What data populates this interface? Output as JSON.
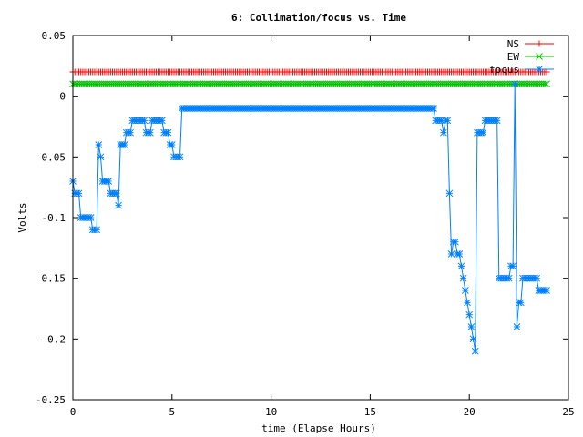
{
  "chart_data": {
    "type": "line",
    "title": "6: Collimation/focus vs. Time",
    "xlabel": "time (Elapse Hours)",
    "ylabel": "Volts",
    "xlim": [
      0,
      25
    ],
    "ylim": [
      -0.25,
      0.05
    ],
    "x_ticks": [
      0,
      5,
      10,
      15,
      20,
      25
    ],
    "y_ticks": [
      0.05,
      0,
      -0.05,
      -0.1,
      -0.15,
      -0.2,
      -0.25
    ],
    "x_tick_labels": [
      "0",
      "5",
      "10",
      "15",
      "20",
      "25"
    ],
    "y_tick_labels": [
      "0.05",
      "0",
      "-0.05",
      "-0.1",
      "-0.15",
      "-0.2",
      "-0.25"
    ],
    "grid": false,
    "legend_position": "top-right",
    "series": [
      {
        "name": "NS",
        "color": "#ff0000",
        "marker": "plus",
        "constant": 0.02,
        "x_range": [
          0,
          23.9
        ],
        "step": 0.1
      },
      {
        "name": "EW",
        "color": "#00c000",
        "marker": "cross",
        "constant": 0.01,
        "x_range": [
          0,
          23.9
        ],
        "step": 0.1
      },
      {
        "name": "focus",
        "color": "#0080ff",
        "marker": "star",
        "points": [
          [
            0.0,
            -0.07
          ],
          [
            0.1,
            -0.08
          ],
          [
            0.2,
            -0.08
          ],
          [
            0.3,
            -0.08
          ],
          [
            0.4,
            -0.1
          ],
          [
            0.5,
            -0.1
          ],
          [
            0.6,
            -0.1
          ],
          [
            0.7,
            -0.1
          ],
          [
            0.8,
            -0.1
          ],
          [
            0.9,
            -0.1
          ],
          [
            1.0,
            -0.11
          ],
          [
            1.1,
            -0.11
          ],
          [
            1.2,
            -0.11
          ],
          [
            1.3,
            -0.04
          ],
          [
            1.4,
            -0.05
          ],
          [
            1.5,
            -0.07
          ],
          [
            1.6,
            -0.07
          ],
          [
            1.7,
            -0.07
          ],
          [
            1.8,
            -0.07
          ],
          [
            1.9,
            -0.08
          ],
          [
            2.0,
            -0.08
          ],
          [
            2.1,
            -0.08
          ],
          [
            2.2,
            -0.08
          ],
          [
            2.3,
            -0.09
          ],
          [
            2.4,
            -0.04
          ],
          [
            2.5,
            -0.04
          ],
          [
            2.6,
            -0.04
          ],
          [
            2.7,
            -0.03
          ],
          [
            2.8,
            -0.03
          ],
          [
            2.9,
            -0.03
          ],
          [
            3.0,
            -0.02
          ],
          [
            3.1,
            -0.02
          ],
          [
            3.2,
            -0.02
          ],
          [
            3.3,
            -0.02
          ],
          [
            3.4,
            -0.02
          ],
          [
            3.5,
            -0.02
          ],
          [
            3.6,
            -0.02
          ],
          [
            3.7,
            -0.03
          ],
          [
            3.8,
            -0.03
          ],
          [
            3.9,
            -0.03
          ],
          [
            4.0,
            -0.02
          ],
          [
            4.1,
            -0.02
          ],
          [
            4.2,
            -0.02
          ],
          [
            4.3,
            -0.02
          ],
          [
            4.4,
            -0.02
          ],
          [
            4.5,
            -0.02
          ],
          [
            4.6,
            -0.03
          ],
          [
            4.7,
            -0.03
          ],
          [
            4.8,
            -0.03
          ],
          [
            4.9,
            -0.04
          ],
          [
            5.0,
            -0.04
          ],
          [
            5.1,
            -0.05
          ],
          [
            5.2,
            -0.05
          ],
          [
            5.3,
            -0.05
          ],
          [
            5.4,
            -0.05
          ],
          [
            5.5,
            -0.01
          ],
          [
            6.0,
            -0.01
          ],
          [
            7.0,
            -0.01
          ],
          [
            8.0,
            -0.01
          ],
          [
            9.0,
            -0.01
          ],
          [
            10.0,
            -0.01
          ],
          [
            11.0,
            -0.01
          ],
          [
            12.0,
            -0.01
          ],
          [
            13.0,
            -0.01
          ],
          [
            14.0,
            -0.01
          ],
          [
            15.0,
            -0.01
          ],
          [
            16.0,
            -0.01
          ],
          [
            17.0,
            -0.01
          ],
          [
            18.0,
            -0.01
          ],
          [
            18.2,
            -0.01
          ],
          [
            18.3,
            -0.02
          ],
          [
            18.4,
            -0.02
          ],
          [
            18.5,
            -0.02
          ],
          [
            18.6,
            -0.02
          ],
          [
            18.7,
            -0.03
          ],
          [
            18.8,
            -0.02
          ],
          [
            18.9,
            -0.02
          ],
          [
            19.0,
            -0.08
          ],
          [
            19.1,
            -0.13
          ],
          [
            19.2,
            -0.12
          ],
          [
            19.3,
            -0.12
          ],
          [
            19.4,
            -0.13
          ],
          [
            19.5,
            -0.13
          ],
          [
            19.6,
            -0.14
          ],
          [
            19.7,
            -0.15
          ],
          [
            19.8,
            -0.16
          ],
          [
            19.9,
            -0.17
          ],
          [
            20.0,
            -0.18
          ],
          [
            20.1,
            -0.19
          ],
          [
            20.2,
            -0.2
          ],
          [
            20.3,
            -0.21
          ],
          [
            20.4,
            -0.03
          ],
          [
            20.5,
            -0.03
          ],
          [
            20.6,
            -0.03
          ],
          [
            20.7,
            -0.03
          ],
          [
            20.8,
            -0.02
          ],
          [
            20.9,
            -0.02
          ],
          [
            21.0,
            -0.02
          ],
          [
            21.1,
            -0.02
          ],
          [
            21.2,
            -0.02
          ],
          [
            21.3,
            -0.02
          ],
          [
            21.4,
            -0.02
          ],
          [
            21.5,
            -0.15
          ],
          [
            21.6,
            -0.15
          ],
          [
            21.7,
            -0.15
          ],
          [
            21.8,
            -0.15
          ],
          [
            21.9,
            -0.15
          ],
          [
            22.0,
            -0.15
          ],
          [
            22.1,
            -0.14
          ],
          [
            22.2,
            -0.14
          ],
          [
            22.3,
            0.01
          ],
          [
            22.4,
            -0.19
          ],
          [
            22.5,
            -0.17
          ],
          [
            22.6,
            -0.17
          ],
          [
            22.7,
            -0.15
          ],
          [
            22.8,
            -0.15
          ],
          [
            22.9,
            -0.15
          ],
          [
            23.0,
            -0.15
          ],
          [
            23.1,
            -0.15
          ],
          [
            23.2,
            -0.15
          ],
          [
            23.3,
            -0.15
          ],
          [
            23.4,
            -0.15
          ],
          [
            23.5,
            -0.16
          ],
          [
            23.6,
            -0.16
          ],
          [
            23.7,
            -0.16
          ],
          [
            23.8,
            -0.16
          ],
          [
            23.9,
            -0.16
          ]
        ]
      }
    ]
  }
}
